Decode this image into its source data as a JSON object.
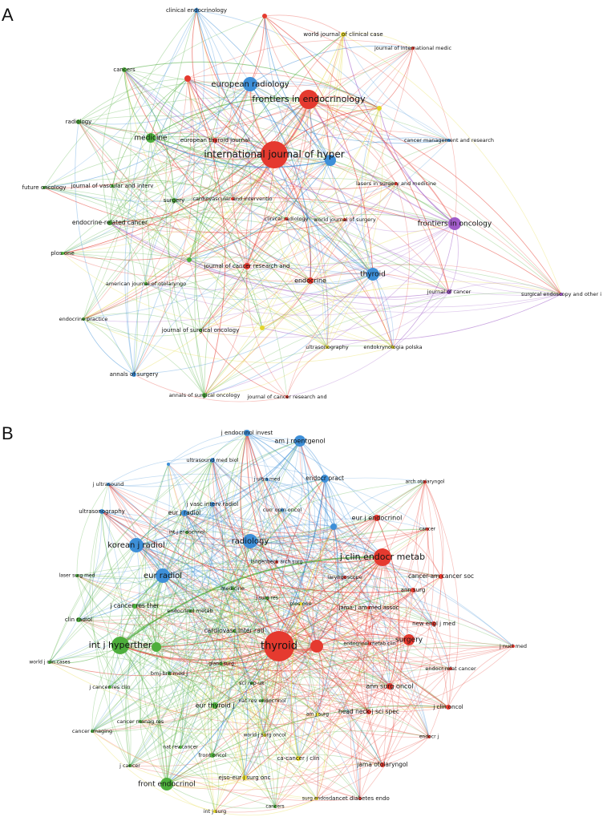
{
  "panels": [
    {
      "label": "A",
      "nodes": [
        "clinical endocrinology",
        "world journal of clinical case",
        "journal of international medic",
        "cancers",
        "european radiology",
        "frontiers in endocrinology",
        "radiology",
        "medicine",
        "european thyroid journal",
        "international journal of hyper",
        "cancer management and research",
        "future oncology",
        "journal of vascular and interv",
        "surgery",
        "cardiovascular and interventio",
        "lasers in surgery and medicine",
        "clinical radiology",
        "world journal of surgery",
        "frontiers in oncology",
        "endocrine-related cancer",
        "plos one",
        "journal of cancer research and",
        "endocrine",
        "thyroid",
        "journal of cancer",
        "surgical endoscopy and other i",
        "american journal of otolaryngo",
        "endocrine practice",
        "journal of surgical oncology",
        "ultrasonography",
        "endokrynologia polska",
        "annals of surgery",
        "annals of surgical oncology",
        "journal of cancer research and"
      ]
    },
    {
      "label": "B",
      "nodes": [
        "j endocrinol invest",
        "am j roentgenol",
        "ultrasound med biol",
        "j ultrasound",
        "j ultra med",
        "endocr pract",
        "arch otolaryngol",
        "j vasc interv radiol",
        "eur j radiol",
        "curr opin oncol",
        "ultrasonography",
        "eur j endocrinol",
        "cancer",
        "korean j radiol",
        "radiology",
        "int j endocrinol",
        "j clin endocr metab",
        "langenbeck arch surg",
        "eur radiol",
        "laser surg med",
        "laryngoscope",
        "medicine",
        "cancer-am cancer soc",
        "j surg res",
        "plos one",
        "ann surg",
        "j cancer res ther",
        "endocrinol metab",
        "jama-j am med assoc",
        "clin radiol",
        "cardiovasc inter rad",
        "new engl j med",
        "int j hyperther",
        "thyroid",
        "endocrinol metab clin",
        "surgery",
        "j nucl med",
        "world j clin cases",
        "gland surg",
        "j cancer res clin",
        "endocr-relat cancer",
        "sci rep-uk",
        "bmj-brit med j",
        "ann surg oncol",
        "j clin oncol",
        "nat rev endocrinol",
        "eur thyroid j",
        "head neck-j sci spec",
        "am j surg",
        "cancer imaging",
        "cancer manag res",
        "world j surg oncol",
        "endocr j",
        "nat rev cancer",
        "front oncol",
        "ca-cancer j clin",
        "j cancer",
        "jama otolaryngol",
        "ejso-eur j surg onc",
        "front endocrinol",
        "surg endosc",
        "lancet diabetes endo",
        "int j surg",
        "cancers"
      ]
    }
  ]
}
